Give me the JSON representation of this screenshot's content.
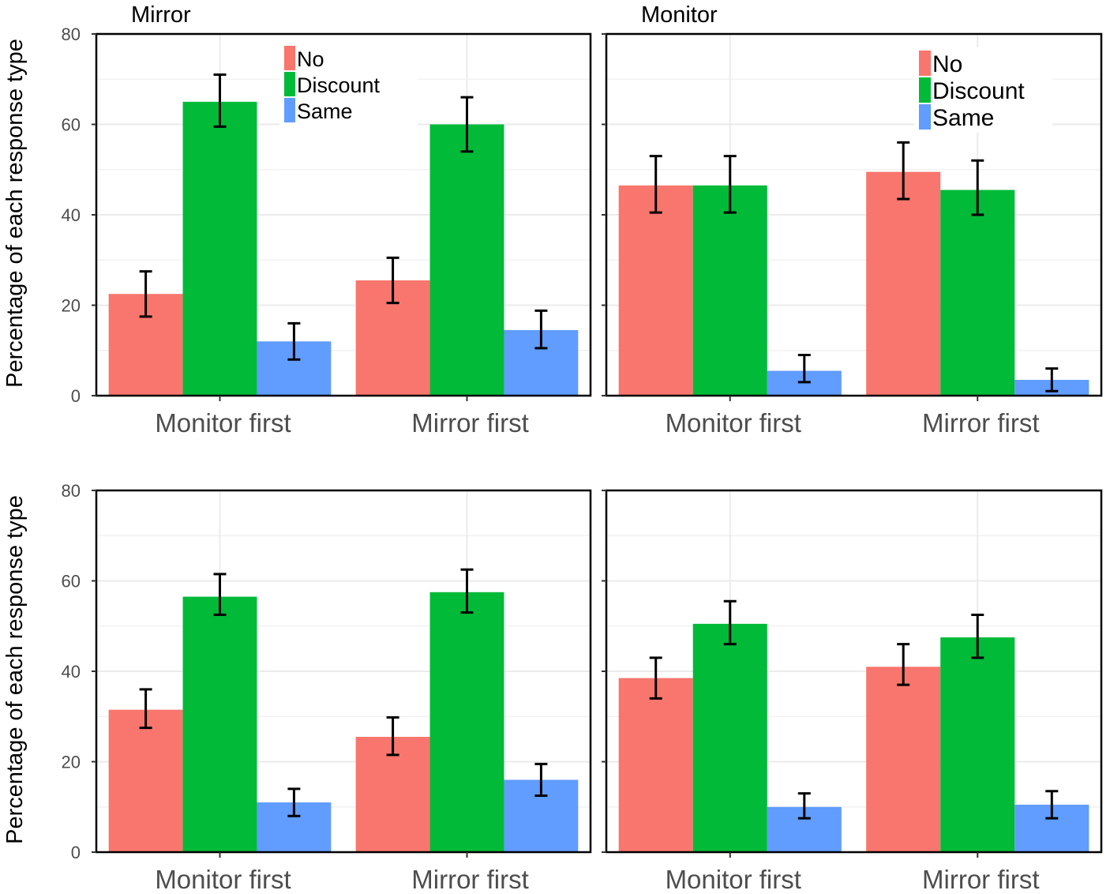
{
  "figure": {
    "ylabel": "Percentage of each response type",
    "colors": {
      "No": "#F8766D",
      "Discount": "#00BA38",
      "Same": "#619CFF"
    }
  },
  "chart_data": [
    {
      "type": "bar",
      "title": "Mirror",
      "categories": [
        "Monitor first",
        "Mirror first"
      ],
      "ylabel": "Percentage of each response type",
      "ylim": [
        0,
        80
      ],
      "yticks": [
        0,
        20,
        40,
        60,
        80
      ],
      "legend": {
        "placement": "top-center",
        "entries": [
          "No",
          "Discount",
          "Same"
        ]
      },
      "series": [
        {
          "name": "No",
          "values": [
            22.5,
            25.5
          ],
          "err_low": [
            17.5,
            20.5
          ],
          "err_high": [
            27.5,
            30.5
          ]
        },
        {
          "name": "Discount",
          "values": [
            65,
            60
          ],
          "err_low": [
            59.5,
            54
          ],
          "err_high": [
            71,
            66
          ]
        },
        {
          "name": "Same",
          "values": [
            12,
            14.5
          ],
          "err_low": [
            8,
            10.5
          ],
          "err_high": [
            16,
            18.8
          ]
        }
      ]
    },
    {
      "type": "bar",
      "title": "Monitor",
      "categories": [
        "Monitor first",
        "Mirror first"
      ],
      "ylim": [
        0,
        80
      ],
      "yticks": [
        0,
        20,
        40,
        60,
        80
      ],
      "legend": {
        "placement": "top-right",
        "entries": [
          "No",
          "Discount",
          "Same"
        ]
      },
      "series": [
        {
          "name": "No",
          "values": [
            46.5,
            49.5
          ],
          "err_low": [
            40.5,
            43.5
          ],
          "err_high": [
            53,
            56
          ]
        },
        {
          "name": "Discount",
          "values": [
            46.5,
            45.5
          ],
          "err_low": [
            40.5,
            40
          ],
          "err_high": [
            53,
            52
          ]
        },
        {
          "name": "Same",
          "values": [
            5.5,
            3.5
          ],
          "err_low": [
            3,
            1
          ],
          "err_high": [
            9,
            6
          ]
        }
      ]
    },
    {
      "type": "bar",
      "title": "",
      "categories": [
        "Monitor first",
        "Mirror first"
      ],
      "ylabel": "Percentage of each response type",
      "ylim": [
        0,
        80
      ],
      "yticks": [
        0,
        20,
        40,
        60,
        80
      ],
      "series": [
        {
          "name": "No",
          "values": [
            31.5,
            25.5
          ],
          "err_low": [
            27.5,
            21.5
          ],
          "err_high": [
            36,
            29.8
          ]
        },
        {
          "name": "Discount",
          "values": [
            56.5,
            57.5
          ],
          "err_low": [
            52.5,
            53
          ],
          "err_high": [
            61.5,
            62.5
          ]
        },
        {
          "name": "Same",
          "values": [
            11,
            16
          ],
          "err_low": [
            8,
            12.5
          ],
          "err_high": [
            14,
            19.5
          ]
        }
      ]
    },
    {
      "type": "bar",
      "title": "",
      "categories": [
        "Monitor first",
        "Mirror first"
      ],
      "ylim": [
        0,
        80
      ],
      "yticks": [
        0,
        20,
        40,
        60,
        80
      ],
      "series": [
        {
          "name": "No",
          "values": [
            38.5,
            41
          ],
          "err_low": [
            34,
            37
          ],
          "err_high": [
            43,
            46
          ]
        },
        {
          "name": "Discount",
          "values": [
            50.5,
            47.5
          ],
          "err_low": [
            46,
            43
          ],
          "err_high": [
            55.5,
            52.5
          ]
        },
        {
          "name": "Same",
          "values": [
            10,
            10.5
          ],
          "err_low": [
            7.5,
            7.5
          ],
          "err_high": [
            13,
            13.5
          ]
        }
      ]
    }
  ]
}
